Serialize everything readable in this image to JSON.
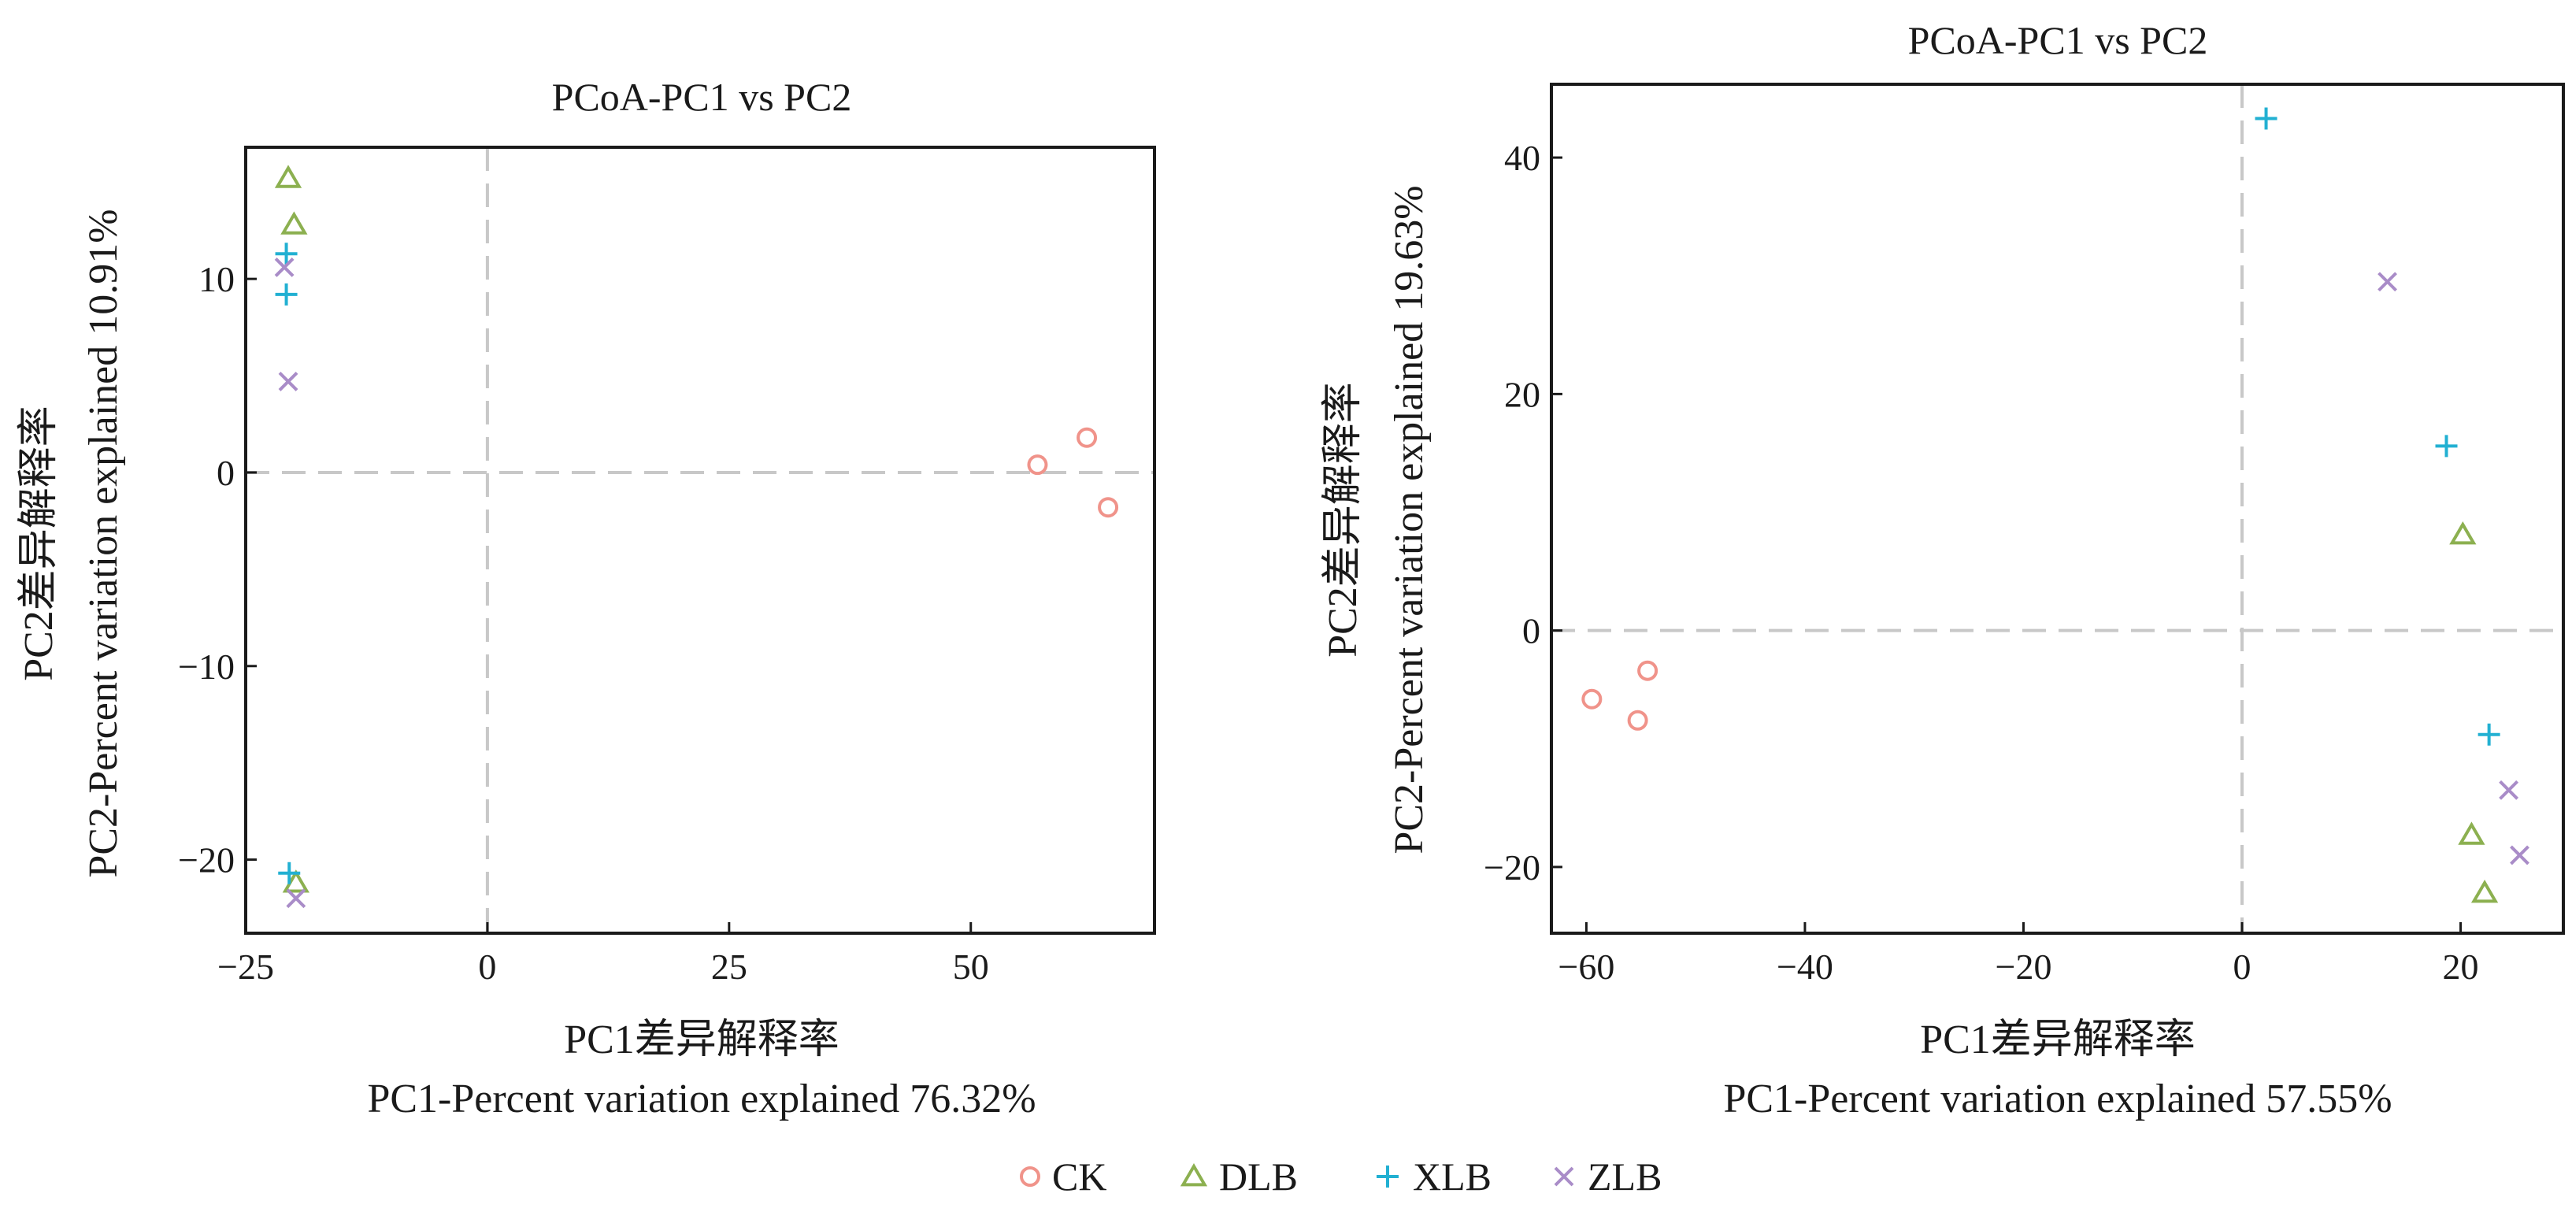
{
  "colors": {
    "CK": "#f0938a",
    "DLB": "#8cb050",
    "XLB": "#22b0d2",
    "ZLB": "#a98cc8"
  },
  "legend": {
    "items": [
      {
        "label": "CK",
        "marker": "circle",
        "color": "#f0938a"
      },
      {
        "label": "DLB",
        "marker": "triangle",
        "color": "#8cb050"
      },
      {
        "label": "XLB",
        "marker": "plus",
        "color": "#22b0d2"
      },
      {
        "label": "ZLB",
        "marker": "x",
        "color": "#a98cc8"
      }
    ]
  },
  "chart_data": [
    {
      "type": "scatter",
      "title": "PCoA-PC1 vs PC2",
      "xlabel": "PC1差异解释率",
      "xlabel2": "PC1-Percent variation explained 76.32%",
      "ylabel": "PC2差异解释率",
      "ylabel2": "PC2-Percent variation explained 10.91%",
      "xlim": [
        -25,
        69
      ],
      "ylim": [
        -23.8,
        16.8
      ],
      "xticks": [
        -25,
        0,
        25,
        50
      ],
      "xtick_labels": [
        "−25",
        "0",
        "25",
        "50"
      ],
      "yticks": [
        -20,
        -10,
        0,
        10
      ],
      "ytick_labels": [
        "−20",
        "−10",
        "0",
        "10"
      ],
      "reference_lines": {
        "x": 0,
        "y": 0
      },
      "grid": false,
      "series": [
        {
          "name": "CK",
          "marker": "circle",
          "points": [
            [
              56.9,
              0.4
            ],
            [
              62,
              1.8
            ],
            [
              64.2,
              -1.8
            ]
          ]
        },
        {
          "name": "DLB",
          "marker": "triangle",
          "points": [
            [
              -20.6,
              15.2
            ],
            [
              -20,
              12.8
            ],
            [
              -19.8,
              -21.2
            ]
          ]
        },
        {
          "name": "XLB",
          "marker": "plus",
          "points": [
            [
              -20.8,
              11.3
            ],
            [
              -20.8,
              9.2
            ],
            [
              -20.5,
              -20.7
            ]
          ]
        },
        {
          "name": "ZLB",
          "marker": "x",
          "points": [
            [
              -21,
              10.6
            ],
            [
              -20.6,
              4.7
            ],
            [
              -19.8,
              -22
            ]
          ]
        }
      ]
    },
    {
      "type": "scatter",
      "title": "PCoA-PC1 vs PC2",
      "xlabel": "PC1差异解释率",
      "xlabel2": "PC1-Percent variation explained 57.55%",
      "ylabel": "PC2差异解释率",
      "ylabel2": "PC2-Percent variation explained 19.63%",
      "xlim": [
        -63.2,
        29.4
      ],
      "ylim": [
        -25.6,
        46.2
      ],
      "xticks": [
        -60,
        -40,
        -20,
        0,
        20
      ],
      "xtick_labels": [
        "−60",
        "−40",
        "−20",
        "0",
        "20"
      ],
      "yticks": [
        -20,
        0,
        20,
        40
      ],
      "ytick_labels": [
        "−20",
        "0",
        "20",
        "40"
      ],
      "reference_lines": {
        "x": 0,
        "y": 0
      },
      "grid": false,
      "series": [
        {
          "name": "CK",
          "marker": "circle",
          "points": [
            [
              -59.5,
              -5.8
            ],
            [
              -55.3,
              -7.6
            ],
            [
              -54.4,
              -3.4
            ]
          ]
        },
        {
          "name": "DLB",
          "marker": "triangle",
          "points": [
            [
              20.2,
              8.1
            ],
            [
              21,
              -17.3
            ],
            [
              22.2,
              -22.2
            ]
          ]
        },
        {
          "name": "XLB",
          "marker": "plus",
          "points": [
            [
              2.2,
              43.3
            ],
            [
              18.7,
              15.6
            ],
            [
              22.6,
              -8.8
            ]
          ]
        },
        {
          "name": "ZLB",
          "marker": "x",
          "points": [
            [
              13.3,
              29.5
            ],
            [
              24.4,
              -13.5
            ],
            [
              25.4,
              -19
            ]
          ]
        }
      ]
    }
  ]
}
